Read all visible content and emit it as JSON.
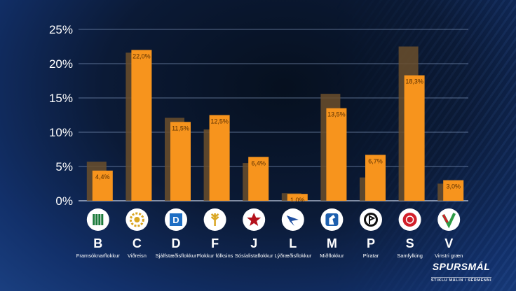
{
  "chart_data": {
    "type": "bar",
    "title": "",
    "xlabel": "",
    "ylabel": "",
    "ylim": [
      0,
      25
    ],
    "yticks": [
      "0%",
      "5%",
      "10%",
      "15%",
      "20%",
      "25%"
    ],
    "grid": true,
    "categories": [
      "B",
      "C",
      "D",
      "F",
      "J",
      "L",
      "M",
      "P",
      "S",
      "V"
    ],
    "party_names": [
      "Framsóknarflokkur",
      "Viðreisn",
      "Sjálfstæðisflokkur",
      "Flokkur fólksins",
      "Sósíalistaflokkur",
      "Lýðræðisflokkur",
      "Miðflokkur",
      "Píratar",
      "Samfylking",
      "Vinstri græn"
    ],
    "series": [
      {
        "values": [
          5.7,
          21.6,
          12.1,
          10.4,
          5.5,
          1.1,
          15.6,
          3.4,
          22.5,
          2.5
        ],
        "color": "#6b4f2c"
      },
      {
        "values": [
          4.4,
          22.0,
          11.5,
          12.5,
          6.4,
          1.0,
          13.5,
          6.7,
          18.3,
          3.0
        ],
        "color": "#f7941d"
      }
    ],
    "data_labels": [
      "4,4%",
      "22,0%",
      "11,5%",
      "12,5%",
      "6,4%",
      "1,0%",
      "13,5%",
      "6,7%",
      "18,3%",
      "3,0%"
    ]
  },
  "logo_icons": [
    "framsokn-logo-icon",
    "vidreisn-logo-icon",
    "sjalfstaedis-logo-icon",
    "flokkur-folksins-logo-icon",
    "sosialista-logo-icon",
    "lydraedis-logo-icon",
    "midflokkur-logo-icon",
    "piratar-logo-icon",
    "samfylking-logo-icon",
    "vinstri-graen-logo-icon"
  ],
  "brand": {
    "name": "SPURSMÁL",
    "tagline": "STIKLU MÁLIN / SÉRMENNI"
  }
}
